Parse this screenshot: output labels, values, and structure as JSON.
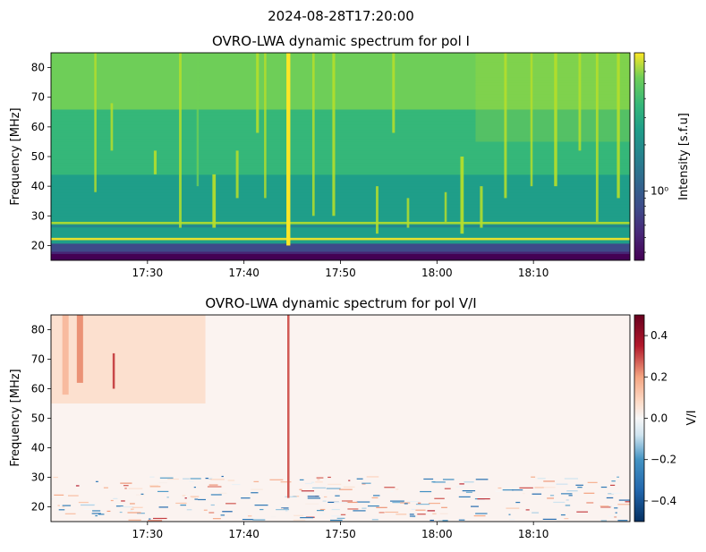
{
  "figure": {
    "suptitle": "2024-08-28T17:20:00"
  },
  "chart_data": [
    {
      "type": "heatmap",
      "title": "OVRO-LWA dynamic spectrum for pol I",
      "xlabel": "",
      "ylabel": "Frequency [MHz]",
      "x_ticks": [
        "17:30",
        "17:40",
        "17:50",
        "18:00",
        "18:10"
      ],
      "x_tick_minutes": [
        30,
        40,
        50,
        60,
        70
      ],
      "xlim_minutes": [
        20,
        80
      ],
      "ylim": [
        15,
        85
      ],
      "y_ticks": [
        20,
        30,
        40,
        50,
        60,
        70,
        80
      ],
      "colorbar": {
        "label": "Intensity [s.f.u]",
        "scale": "log",
        "tick_labels": [
          "10⁰"
        ],
        "tick_values": [
          1.0
        ],
        "colormap": "viridis"
      },
      "horizontal_bands_mhz": [
        {
          "f": 15.5,
          "level": 0.02
        },
        {
          "f": 17.5,
          "level": 0.08
        },
        {
          "f": 19.5,
          "level": 0.22
        },
        {
          "f": 21.0,
          "level": 0.55
        },
        {
          "f": 22.2,
          "level": 0.95
        },
        {
          "f": 23.6,
          "level": 0.6
        },
        {
          "f": 26.5,
          "level": 0.4
        },
        {
          "f": 27.6,
          "level": 0.9
        },
        {
          "f": 28.6,
          "level": 0.55
        }
      ],
      "bursts": [
        {
          "t": 24.6,
          "f0": 38,
          "f1": 85,
          "strength": 0.35
        },
        {
          "t": 26.3,
          "f0": 52,
          "f1": 68,
          "strength": 0.4
        },
        {
          "t": 30.8,
          "f0": 44,
          "f1": 52,
          "strength": 0.55
        },
        {
          "t": 33.4,
          "f0": 26,
          "f1": 85,
          "strength": 0.45
        },
        {
          "t": 35.2,
          "f0": 40,
          "f1": 85,
          "strength": 0.3
        },
        {
          "t": 36.9,
          "f0": 26,
          "f1": 44,
          "strength": 0.75
        },
        {
          "t": 39.3,
          "f0": 36,
          "f1": 52,
          "strength": 0.5
        },
        {
          "t": 41.4,
          "f0": 58,
          "f1": 85,
          "strength": 0.55
        },
        {
          "t": 42.2,
          "f0": 36,
          "f1": 85,
          "strength": 0.35
        },
        {
          "t": 44.6,
          "f0": 20,
          "f1": 85,
          "strength": 0.95
        },
        {
          "t": 47.2,
          "f0": 30,
          "f1": 85,
          "strength": 0.4
        },
        {
          "t": 49.3,
          "f0": 30,
          "f1": 85,
          "strength": 0.55
        },
        {
          "t": 53.8,
          "f0": 24,
          "f1": 40,
          "strength": 0.45
        },
        {
          "t": 55.5,
          "f0": 58,
          "f1": 85,
          "strength": 0.5
        },
        {
          "t": 57.0,
          "f0": 26,
          "f1": 36,
          "strength": 0.4
        },
        {
          "t": 60.9,
          "f0": 28,
          "f1": 38,
          "strength": 0.35
        },
        {
          "t": 62.6,
          "f0": 24,
          "f1": 50,
          "strength": 0.75
        },
        {
          "t": 64.6,
          "f0": 26,
          "f1": 40,
          "strength": 0.55
        },
        {
          "t": 67.1,
          "f0": 36,
          "f1": 85,
          "strength": 0.5
        },
        {
          "t": 69.8,
          "f0": 40,
          "f1": 85,
          "strength": 0.35
        },
        {
          "t": 72.3,
          "f0": 40,
          "f1": 85,
          "strength": 0.65
        },
        {
          "t": 74.8,
          "f0": 52,
          "f1": 85,
          "strength": 0.45
        },
        {
          "t": 76.6,
          "f0": 28,
          "f1": 85,
          "strength": 0.45
        },
        {
          "t": 78.8,
          "f0": 36,
          "f1": 85,
          "strength": 0.6
        }
      ]
    },
    {
      "type": "heatmap",
      "title": "OVRO-LWA dynamic spectrum for pol V/I",
      "xlabel": "",
      "ylabel": "Frequency [MHz]",
      "x_ticks": [
        "17:30",
        "17:40",
        "17:50",
        "18:00",
        "18:10"
      ],
      "x_tick_minutes": [
        30,
        40,
        50,
        60,
        70
      ],
      "xlim_minutes": [
        20,
        80
      ],
      "ylim": [
        15,
        85
      ],
      "y_ticks": [
        20,
        30,
        40,
        50,
        60,
        70,
        80
      ],
      "colorbar": {
        "label": "V/I",
        "colormap": "RdBu_r",
        "range": [
          -0.5,
          0.5
        ],
        "tick_values": [
          0.4,
          0.2,
          0.0,
          -0.2,
          -0.4
        ],
        "tick_labels": [
          "0.4",
          "0.2",
          "0.0",
          "−0.2",
          "−0.4"
        ]
      },
      "polarized_features": [
        {
          "t": 44.6,
          "f0": 23,
          "f1": 85,
          "value": 0.28
        },
        {
          "t": 23.0,
          "f0": 62,
          "f1": 85,
          "value": 0.22
        },
        {
          "t": 26.5,
          "f0": 60,
          "f1": 72,
          "value": 0.3
        },
        {
          "t": 21.5,
          "f0": 58,
          "f1": 85,
          "value": 0.15
        }
      ]
    }
  ]
}
